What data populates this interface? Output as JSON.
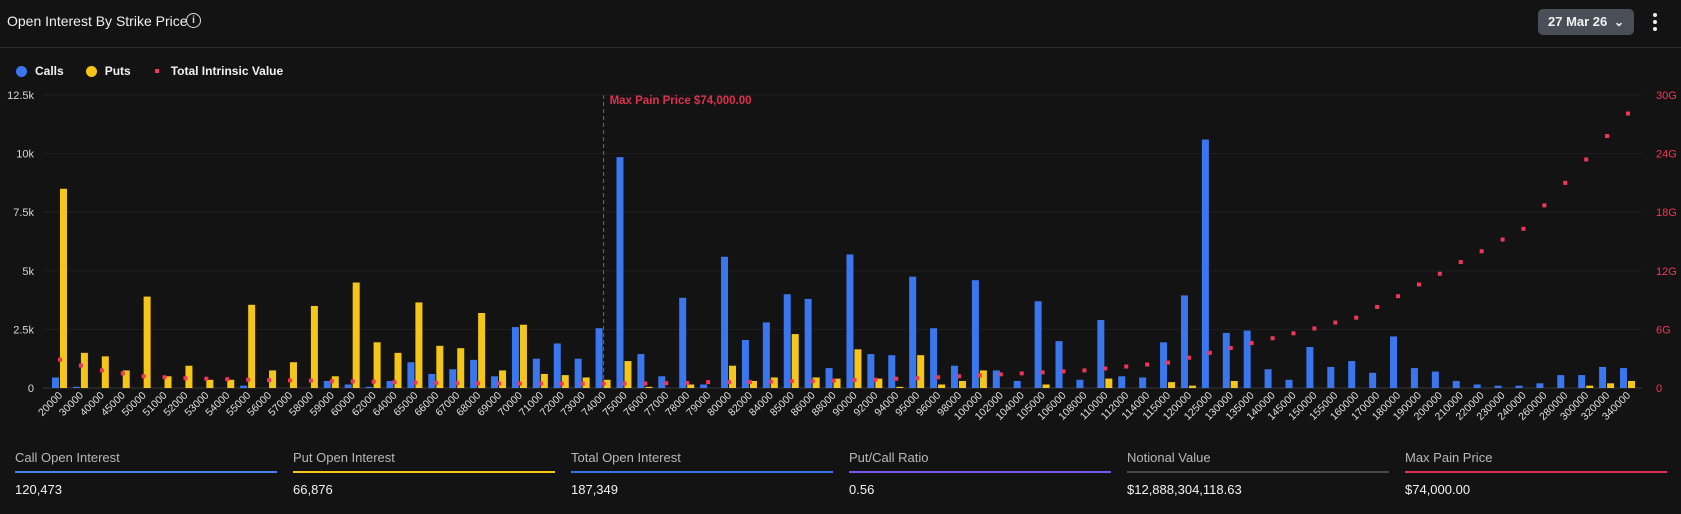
{
  "header": {
    "title": "Open Interest By Strike Price",
    "info_icon": "info-icon",
    "date_selector": "27 Mar 26",
    "menu_icon": "kebab-icon"
  },
  "legend": [
    {
      "label": "Calls",
      "color": "#3a76ee"
    },
    {
      "label": "Puts",
      "color": "#f5c518"
    },
    {
      "label": "Total Intrinsic Value",
      "color": "#f0365a"
    }
  ],
  "chart_data": {
    "type": "bar",
    "categories": [
      "20000",
      "30000",
      "40000",
      "45000",
      "50000",
      "51000",
      "52000",
      "53000",
      "54000",
      "55000",
      "56000",
      "57000",
      "58000",
      "59000",
      "60000",
      "62000",
      "64000",
      "65000",
      "66000",
      "67000",
      "68000",
      "69000",
      "70000",
      "71000",
      "72000",
      "73000",
      "74000",
      "75000",
      "76000",
      "77000",
      "78000",
      "79000",
      "80000",
      "82000",
      "84000",
      "85000",
      "86000",
      "88000",
      "90000",
      "92000",
      "94000",
      "95000",
      "96000",
      "98000",
      "100000",
      "102000",
      "104000",
      "105000",
      "106000",
      "108000",
      "110000",
      "112000",
      "114000",
      "115000",
      "120000",
      "125000",
      "130000",
      "135000",
      "140000",
      "145000",
      "150000",
      "155000",
      "160000",
      "170000",
      "180000",
      "190000",
      "200000",
      "210000",
      "220000",
      "230000",
      "240000",
      "260000",
      "280000",
      "300000",
      "320000",
      "340000"
    ],
    "series": [
      {
        "name": "Calls",
        "axis": "left",
        "values": [
          450,
          50,
          0,
          0,
          0,
          0,
          0,
          0,
          0,
          100,
          0,
          0,
          0,
          300,
          150,
          50,
          300,
          1100,
          600,
          800,
          1200,
          500,
          2600,
          1250,
          1900,
          1250,
          2550,
          9850,
          1450,
          500,
          3850,
          150,
          5600,
          2050,
          2800,
          4000,
          3800,
          850,
          5700,
          1450,
          1400,
          4750,
          2550,
          950,
          4600,
          750,
          300,
          3700,
          2000,
          350,
          2900,
          500,
          450,
          1950,
          3950,
          10600,
          2350,
          2450,
          800,
          350,
          1750,
          900,
          1150,
          650,
          2200,
          850,
          700,
          300,
          150,
          100,
          100,
          200,
          550,
          550,
          900,
          850
        ]
      },
      {
        "name": "Puts",
        "axis": "left",
        "values": [
          8500,
          1500,
          1350,
          750,
          3900,
          500,
          950,
          350,
          350,
          3550,
          750,
          1100,
          3500,
          500,
          4500,
          1950,
          1500,
          3650,
          1800,
          1700,
          3200,
          750,
          2700,
          600,
          550,
          450,
          350,
          1150,
          50,
          0,
          150,
          0,
          950,
          300,
          450,
          2300,
          450,
          400,
          1650,
          400,
          50,
          1400,
          150,
          300,
          750,
          0,
          0,
          150,
          0,
          0,
          400,
          0,
          0,
          250,
          100,
          0,
          300,
          0,
          0,
          0,
          0,
          0,
          0,
          0,
          0,
          0,
          0,
          0,
          0,
          0,
          0,
          0,
          0,
          100,
          200,
          300
        ]
      },
      {
        "name": "Total Intrinsic Value",
        "axis": "right",
        "unit": "G",
        "values": [
          2.9,
          2.3,
          1.8,
          1.5,
          1.2,
          1.1,
          1.0,
          0.95,
          0.9,
          0.85,
          0.8,
          0.78,
          0.75,
          0.7,
          0.68,
          0.65,
          0.6,
          0.55,
          0.52,
          0.5,
          0.48,
          0.46,
          0.45,
          0.45,
          0.44,
          0.44,
          0.44,
          0.45,
          0.46,
          0.5,
          0.52,
          0.6,
          0.6,
          0.62,
          0.65,
          0.7,
          0.7,
          0.75,
          0.8,
          0.85,
          0.95,
          1.0,
          1.1,
          1.2,
          1.3,
          1.4,
          1.5,
          1.6,
          1.7,
          1.8,
          2.0,
          2.2,
          2.4,
          2.6,
          3.1,
          3.6,
          4.1,
          4.6,
          5.1,
          5.6,
          6.1,
          6.7,
          7.2,
          8.3,
          9.4,
          10.6,
          11.7,
          12.9,
          14.0,
          15.2,
          16.3,
          18.7,
          21.0,
          23.4,
          25.8,
          28.1
        ]
      }
    ],
    "ylim": [
      0,
      12500
    ],
    "yticks": [
      "0",
      "2.5k",
      "5k",
      "7.5k",
      "10k",
      "12.5k"
    ],
    "y2lim": [
      0,
      30
    ],
    "y2ticks": [
      "0",
      "6G",
      "12G",
      "18G",
      "24G",
      "30G"
    ],
    "annotation": {
      "label": "Max Pain Price $74,000.00",
      "category": "74000",
      "color": "#e0304f"
    },
    "grid": true,
    "legend_position": "top-left"
  },
  "stats": [
    {
      "label": "Call Open Interest",
      "value": "120,473",
      "color": "#4a80f0"
    },
    {
      "label": "Put Open Interest",
      "value": "66,876",
      "color": "#f5c518"
    },
    {
      "label": "Total Open Interest",
      "value": "187,349",
      "color": "#3a72e8"
    },
    {
      "label": "Put/Call Ratio",
      "value": "0.56",
      "color": "#7656ee"
    },
    {
      "label": "Notional Value",
      "value": "$12,888,304,118.63",
      "color": "#4a4a4a"
    },
    {
      "label": "Max Pain Price",
      "value": "$74,000.00",
      "color": "#e0304f"
    }
  ]
}
